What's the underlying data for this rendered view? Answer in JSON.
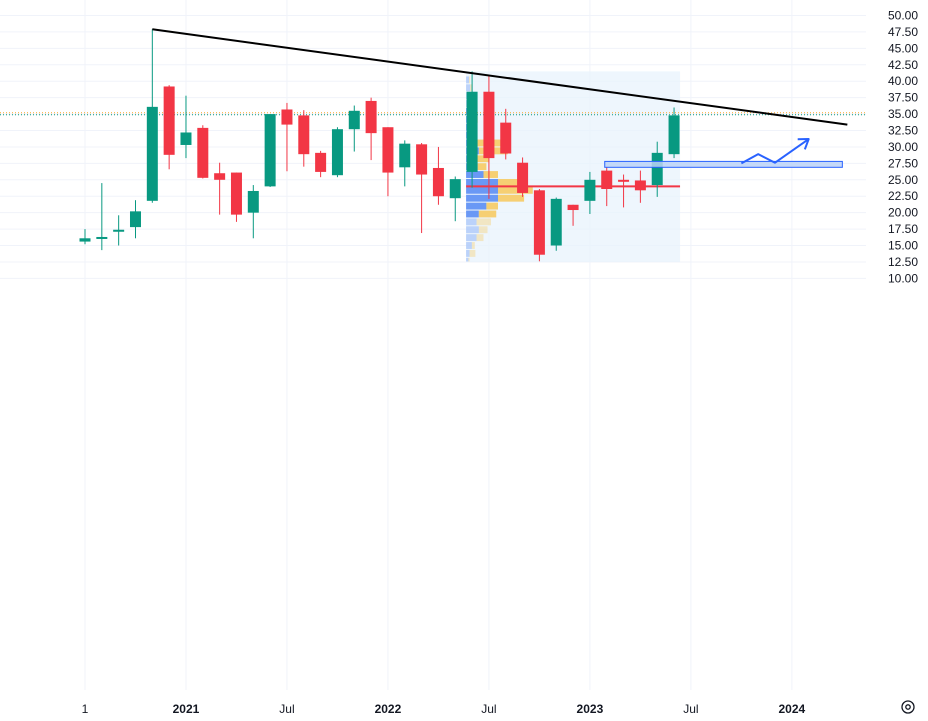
{
  "chart_data": {
    "type": "candlestick",
    "y_axis": {
      "position": "right",
      "range": [
        9.5,
        51
      ],
      "tick_values": [
        10,
        12.5,
        15,
        17.5,
        20,
        22.5,
        25,
        27.5,
        30,
        32.5,
        35,
        37.5,
        40,
        42.5,
        45,
        47.5,
        50
      ],
      "tick_labels": [
        "10.00",
        "12.50",
        "15.00",
        "17.50",
        "20.00",
        "22.50",
        "25.00",
        "27.50",
        "30.00",
        "32.50",
        "35.00",
        "37.50",
        "40.00",
        "42.50",
        "45.00",
        "47.50",
        "50.00"
      ]
    },
    "x_axis": {
      "start": "2020-06",
      "end": "2024-06",
      "ticks": [
        {
          "label": "1",
          "date": "2020-07",
          "bold": false
        },
        {
          "label": "2021",
          "date": "2021-01",
          "bold": true
        },
        {
          "label": "Jul",
          "date": "2021-07",
          "bold": false
        },
        {
          "label": "2022",
          "date": "2022-01",
          "bold": true
        },
        {
          "label": "Jul",
          "date": "2022-07",
          "bold": false
        },
        {
          "label": "2023",
          "date": "2023-01",
          "bold": true
        },
        {
          "label": "Jul",
          "date": "2023-07",
          "bold": false
        },
        {
          "label": "2024",
          "date": "2024-01",
          "bold": true
        }
      ]
    },
    "grid": true,
    "colors": {
      "up": "#089981",
      "down": "#f23645",
      "trendline": "#000000",
      "arrow": "#2962ff",
      "zone_fill": "#bbd2f7",
      "zone_border": "#2962ff",
      "poc": "#f23645",
      "vp_up": "#5b8ef4",
      "vp_down": "#f7c85a",
      "vp_range_bg": "#e8f3fc"
    },
    "candles": [
      {
        "date": "2020-07",
        "open": 15.6,
        "high": 17.5,
        "low": 15.2,
        "close": 16.1
      },
      {
        "date": "2020-08",
        "open": 16.2,
        "high": 24.5,
        "low": 14.3,
        "close": 16.3
      },
      {
        "date": "2020-09",
        "open": 17.1,
        "high": 19.6,
        "low": 15.0,
        "close": 17.4
      },
      {
        "date": "2020-10",
        "open": 17.8,
        "high": 21.9,
        "low": 16.1,
        "close": 20.2
      },
      {
        "date": "2020-11",
        "open": 21.8,
        "high": 47.9,
        "low": 21.5,
        "close": 36.1
      },
      {
        "date": "2020-12",
        "open": 39.2,
        "high": 39.4,
        "low": 26.6,
        "close": 28.8
      },
      {
        "date": "2021-01",
        "open": 30.3,
        "high": 37.8,
        "low": 28.3,
        "close": 32.2
      },
      {
        "date": "2021-02",
        "open": 32.9,
        "high": 33.3,
        "low": 25.2,
        "close": 25.3
      },
      {
        "date": "2021-03",
        "open": 26.0,
        "high": 27.6,
        "low": 19.7,
        "close": 25.0
      },
      {
        "date": "2021-04",
        "open": 26.1,
        "high": 26.1,
        "low": 18.6,
        "close": 19.7
      },
      {
        "date": "2021-05",
        "open": 20.0,
        "high": 24.2,
        "low": 16.1,
        "close": 23.3
      },
      {
        "date": "2021-06",
        "open": 24.0,
        "high": 35.0,
        "low": 23.9,
        "close": 35.0
      },
      {
        "date": "2021-07",
        "open": 35.7,
        "high": 36.7,
        "low": 26.3,
        "close": 33.4
      },
      {
        "date": "2021-08",
        "open": 34.8,
        "high": 35.6,
        "low": 27.0,
        "close": 28.9
      },
      {
        "date": "2021-09",
        "open": 29.1,
        "high": 29.4,
        "low": 25.4,
        "close": 26.2
      },
      {
        "date": "2021-10",
        "open": 25.7,
        "high": 33.0,
        "low": 25.4,
        "close": 32.7
      },
      {
        "date": "2021-11",
        "open": 32.7,
        "high": 36.3,
        "low": 29.3,
        "close": 35.5
      },
      {
        "date": "2021-12",
        "open": 37.0,
        "high": 37.5,
        "low": 28.0,
        "close": 32.1
      },
      {
        "date": "2022-01",
        "open": 33.0,
        "high": 33.0,
        "low": 22.5,
        "close": 26.1
      },
      {
        "date": "2022-02",
        "open": 26.9,
        "high": 31.0,
        "low": 24.0,
        "close": 30.5
      },
      {
        "date": "2022-03",
        "open": 30.4,
        "high": 30.6,
        "low": 16.9,
        "close": 25.8
      },
      {
        "date": "2022-04",
        "open": 26.8,
        "high": 30.0,
        "low": 21.2,
        "close": 22.5
      },
      {
        "date": "2022-05",
        "open": 22.2,
        "high": 25.5,
        "low": 18.7,
        "close": 25.1
      },
      {
        "date": "2022-06",
        "open": 26.2,
        "high": 41.5,
        "low": 23.8,
        "close": 38.4
      },
      {
        "date": "2022-07",
        "open": 38.4,
        "high": 41.0,
        "low": 22.1,
        "close": 28.3
      },
      {
        "date": "2022-08",
        "open": 33.7,
        "high": 35.8,
        "low": 28.1,
        "close": 29.0
      },
      {
        "date": "2022-09",
        "open": 27.6,
        "high": 28.4,
        "low": 22.4,
        "close": 23.0
      },
      {
        "date": "2022-10",
        "open": 23.4,
        "high": 23.6,
        "low": 12.6,
        "close": 13.6
      },
      {
        "date": "2022-11",
        "open": 15.0,
        "high": 22.3,
        "low": 14.2,
        "close": 22.1
      },
      {
        "date": "2022-12",
        "open": 21.2,
        "high": 21.2,
        "low": 18.0,
        "close": 20.4
      },
      {
        "date": "2023-01",
        "open": 21.8,
        "high": 26.2,
        "low": 19.8,
        "close": 25.0
      },
      {
        "date": "2023-02",
        "open": 26.4,
        "high": 26.9,
        "low": 21.0,
        "close": 23.6
      },
      {
        "date": "2023-03",
        "open": 25.0,
        "high": 25.8,
        "low": 20.8,
        "close": 24.9
      },
      {
        "date": "2023-04",
        "open": 24.9,
        "high": 26.4,
        "low": 21.5,
        "close": 23.4
      },
      {
        "date": "2023-05",
        "open": 24.2,
        "high": 30.8,
        "low": 22.4,
        "close": 29.1
      },
      {
        "date": "2023-06",
        "open": 28.9,
        "high": 36.0,
        "low": 28.3,
        "close": 34.8
      }
    ],
    "trendline": {
      "from": {
        "date": "2020-11",
        "value": 47.9
      },
      "to": {
        "date": "2024-04",
        "value": 33.4
      }
    },
    "price_lines": [
      {
        "value": 35.2,
        "color": "#f7a531",
        "style": "dotted"
      },
      {
        "value": 34.9,
        "color": "#089981",
        "style": "dotted"
      }
    ],
    "support_zone": {
      "from": "2023-02",
      "to": "2024-04",
      "low": 26.9,
      "high": 27.8
    },
    "projection_arrow": [
      {
        "date": "2023-10",
        "value": 27.5
      },
      {
        "date": "2023-11",
        "value": 28.9
      },
      {
        "date": "2023-12",
        "value": 27.6
      },
      {
        "date": "2024-02",
        "value": 31.2
      }
    ],
    "volume_profile": {
      "from": "2022-06",
      "to": "2023-06",
      "top": 41.5,
      "bottom": 12.5,
      "poc_value": 24.0,
      "rows": [
        {
          "low": 39.6,
          "high": 40.8,
          "up": 0.05,
          "down": 0.02
        },
        {
          "low": 38.4,
          "high": 39.6,
          "up": 0.07,
          "down": 0.03
        },
        {
          "low": 37.2,
          "high": 38.4,
          "up": 0.12,
          "down": 0.04
        },
        {
          "low": 36.0,
          "high": 37.2,
          "up": 0.13,
          "down": 0.05
        },
        {
          "low": 34.8,
          "high": 36.0,
          "up": 0.14,
          "down": 0.05
        },
        {
          "low": 33.6,
          "high": 34.8,
          "up": 0.14,
          "down": 0.06
        },
        {
          "low": 32.4,
          "high": 33.6,
          "up": 0.12,
          "down": 0.06
        },
        {
          "low": 31.2,
          "high": 32.4,
          "up": 0.12,
          "down": 0.07
        },
        {
          "low": 30.0,
          "high": 31.2,
          "up": 0.15,
          "down": 0.55
        },
        {
          "low": 28.8,
          "high": 30.0,
          "up": 0.22,
          "down": 0.5
        },
        {
          "low": 27.6,
          "high": 28.8,
          "up": 0.15,
          "down": 0.25
        },
        {
          "low": 26.4,
          "high": 27.6,
          "up": 0.2,
          "down": 0.15
        },
        {
          "low": 25.2,
          "high": 26.4,
          "up": 0.3,
          "down": 0.25
        },
        {
          "low": 24.0,
          "high": 25.2,
          "up": 0.55,
          "down": 0.45
        },
        {
          "low": 22.8,
          "high": 24.0,
          "up": 0.55,
          "down": 0.6
        },
        {
          "low": 21.6,
          "high": 22.8,
          "up": 0.55,
          "down": 0.45
        },
        {
          "low": 20.4,
          "high": 21.6,
          "up": 0.35,
          "down": 0.2
        },
        {
          "low": 19.2,
          "high": 20.4,
          "up": 0.22,
          "down": 0.3
        },
        {
          "low": 18.0,
          "high": 19.2,
          "up": 0.18,
          "down": 0.25
        },
        {
          "low": 16.8,
          "high": 18.0,
          "up": 0.22,
          "down": 0.15
        },
        {
          "low": 15.6,
          "high": 16.8,
          "up": 0.18,
          "down": 0.12
        },
        {
          "low": 14.4,
          "high": 15.6,
          "up": 0.1,
          "down": 0.05
        },
        {
          "low": 13.2,
          "high": 14.4,
          "up": 0.06,
          "down": 0.1
        },
        {
          "low": 12.5,
          "high": 13.2,
          "up": 0.04,
          "down": 0.02
        }
      ]
    },
    "settings_icon": "gear-icon"
  }
}
